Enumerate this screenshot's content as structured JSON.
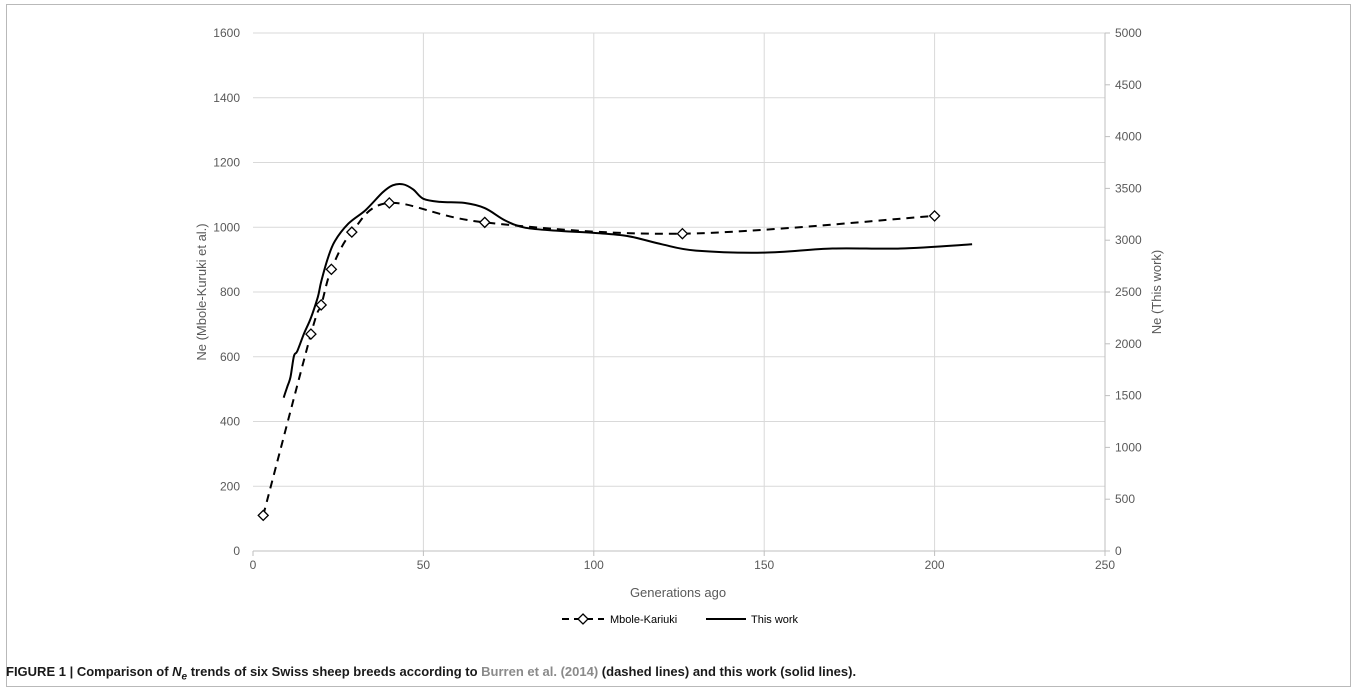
{
  "chart_data": {
    "type": "line",
    "xlabel": "Generations ago",
    "ylabel_left": "Ne (Mbole-Kuruki et al.)",
    "ylabel_right": "Ne (This work)",
    "xlim": [
      0,
      250
    ],
    "ylim_left": [
      0,
      1600
    ],
    "ylim_right": [
      0,
      5000
    ],
    "x_ticks": [
      "0",
      "50",
      "100",
      "150",
      "200",
      "250"
    ],
    "y_left_ticks": [
      "0",
      "200",
      "400",
      "600",
      "800",
      "1000",
      "1200",
      "1400",
      "1600"
    ],
    "y_right_ticks": [
      "0",
      "500",
      "1000",
      "1500",
      "2000",
      "2500",
      "3000",
      "3500",
      "4000",
      "4500",
      "5000"
    ],
    "grid": "vertical and horizontal",
    "legend_position": "bottom-center",
    "series": [
      {
        "name": "Mbole-Kariuki",
        "axis": "left",
        "style": "dashed",
        "marker": "diamond",
        "color": "#000000",
        "x": [
          3,
          17,
          20,
          23,
          29,
          40,
          68,
          126,
          200
        ],
        "y": [
          110,
          670,
          760,
          870,
          985,
          1075,
          1015,
          980,
          1035
        ]
      },
      {
        "name": "This work",
        "axis": "right",
        "style": "solid",
        "marker": "none",
        "color": "#000000",
        "x": [
          9,
          10,
          11,
          12,
          13,
          15,
          17,
          19,
          20,
          22,
          24,
          28,
          33,
          38,
          41,
          44,
          47,
          50,
          55,
          62,
          68,
          74,
          80,
          90,
          100,
          110,
          120,
          130,
          150,
          170,
          190,
          211
        ],
        "y": [
          1480,
          1580,
          1680,
          1880,
          1930,
          2100,
          2250,
          2450,
          2600,
          2830,
          2990,
          3160,
          3290,
          3460,
          3530,
          3540,
          3490,
          3400,
          3370,
          3360,
          3310,
          3190,
          3120,
          3090,
          3070,
          3040,
          2960,
          2900,
          2880,
          2920,
          2920,
          2960
        ]
      }
    ]
  },
  "caption": {
    "prefix": "FIGURE 1 | Comparison of ",
    "symbol": "N",
    "symbol_sub": "e",
    "middle": " trends of six Swiss sheep breeds according to ",
    "reference": "Burren et al. (2014)",
    "suffix": " (dashed lines) and this work (solid lines)."
  }
}
